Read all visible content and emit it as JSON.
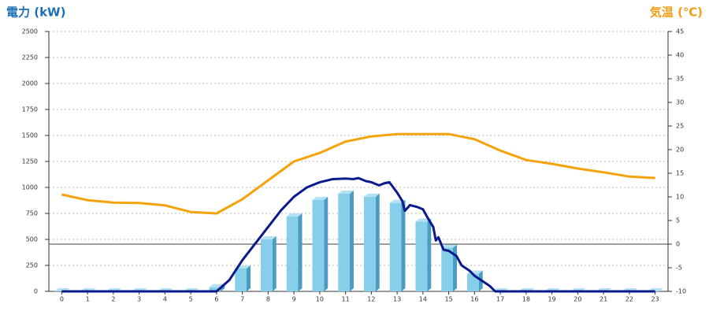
{
  "chart_data": {
    "type": "bar",
    "y_title": "電力 (kW)",
    "y2_title": "気温 (℃)",
    "categories": [
      0,
      1,
      2,
      3,
      4,
      5,
      6,
      7,
      8,
      9,
      10,
      11,
      12,
      13,
      14,
      15,
      16,
      17,
      18,
      19,
      20,
      21,
      22,
      23
    ],
    "series": [
      {
        "type": "bar",
        "color": "#87ceeb",
        "values": [
          0,
          0,
          0,
          0,
          0,
          0,
          40,
          220,
          500,
          720,
          880,
          940,
          910,
          850,
          670,
          420,
          170,
          0,
          0,
          0,
          0,
          0,
          0,
          0
        ]
      },
      {
        "type": "line",
        "color": "#0a1a8c",
        "x": [
          0,
          6,
          6.5,
          7,
          7.5,
          8,
          8.5,
          9,
          9.5,
          10,
          10.5,
          11,
          11.3,
          11.5,
          11.8,
          12,
          12.3,
          12.5,
          12.7,
          13,
          13.2,
          13.3,
          13.5,
          13.8,
          14,
          14.2,
          14.4,
          14.5,
          14.6,
          14.7,
          14.8,
          15,
          15.3,
          15.5,
          15.8,
          16,
          16.3,
          16.6,
          16.8,
          23
        ],
        "values": [
          0,
          0,
          110,
          300,
          460,
          620,
          780,
          910,
          1000,
          1050,
          1080,
          1085,
          1080,
          1090,
          1060,
          1050,
          1020,
          1040,
          1050,
          950,
          870,
          775,
          830,
          810,
          790,
          700,
          620,
          490,
          520,
          460,
          400,
          390,
          340,
          250,
          200,
          150,
          100,
          50,
          0,
          0
        ]
      },
      {
        "type": "line",
        "axis": "y2",
        "color": "#f5a30b",
        "values": [
          10.5,
          9.3,
          8.8,
          8.7,
          8.2,
          6.8,
          6.5,
          9.5,
          13.5,
          17.5,
          19.3,
          21.7,
          22.8,
          23.3,
          23.3,
          23.3,
          22.2,
          19.8,
          17.8,
          17,
          16,
          15.2,
          14.3,
          14
        ]
      }
    ],
    "ylim": [
      0,
      2500
    ],
    "yticks": [
      0,
      250,
      500,
      750,
      1000,
      1250,
      1500,
      1750,
      2000,
      2250,
      2500
    ],
    "y2lim": [
      -10,
      45
    ],
    "y2ticks": [
      -10,
      -5,
      0,
      5,
      10,
      15,
      20,
      25,
      30,
      35,
      40,
      45
    ],
    "grid": true
  }
}
